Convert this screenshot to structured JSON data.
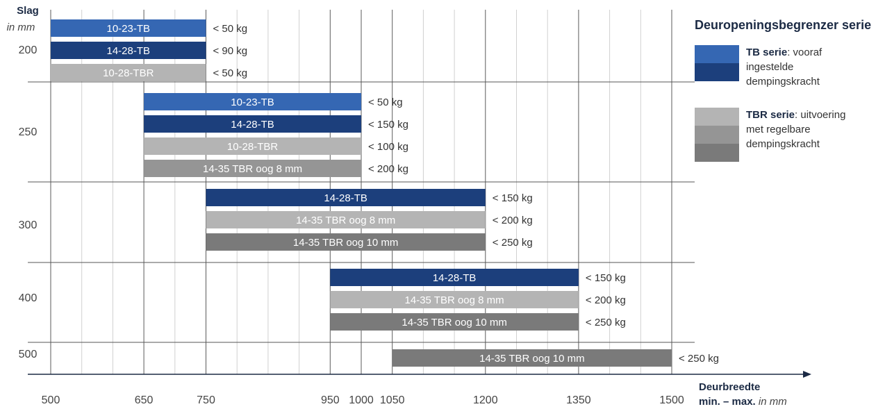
{
  "chart_data": {
    "type": "bar",
    "orientation": "horizontal-range",
    "title": "Deuropeningsbegrenzer serie",
    "ylabel": "Slag",
    "ylabel_unit": "in mm",
    "xlabel": "Deurbreedte",
    "xlabel_line2": "min. – max.",
    "xlabel_unit": "in mm",
    "xlim": [
      500,
      1500
    ],
    "x_ticks": [
      500,
      650,
      750,
      950,
      1000,
      1050,
      1200,
      1350,
      1500
    ],
    "x_minor_step": 50,
    "groups": [
      {
        "slag": "200",
        "bars": [
          {
            "label": "10-23-TB",
            "from": 500,
            "to": 750,
            "max_load": "< 50 kg",
            "series": "tb_light"
          },
          {
            "label": "14-28-TB",
            "from": 500,
            "to": 750,
            "max_load": "< 90 kg",
            "series": "tb_dark"
          },
          {
            "label": "10-28-TBR",
            "from": 500,
            "to": 750,
            "max_load": "< 50 kg",
            "series": "tbr_light"
          }
        ]
      },
      {
        "slag": "250",
        "bars": [
          {
            "label": "10-23-TB",
            "from": 650,
            "to": 1000,
            "max_load": "< 50 kg",
            "series": "tb_light"
          },
          {
            "label": "14-28-TB",
            "from": 650,
            "to": 1000,
            "max_load": "< 150 kg",
            "series": "tb_dark"
          },
          {
            "label": "10-28-TBR",
            "from": 650,
            "to": 1000,
            "max_load": "< 100 kg",
            "series": "tbr_light"
          },
          {
            "label": "14-35 TBR oog 8 mm",
            "from": 650,
            "to": 1000,
            "max_load": "< 200 kg",
            "series": "tbr_mid"
          }
        ]
      },
      {
        "slag": "300",
        "bars": [
          {
            "label": "14-28-TB",
            "from": 750,
            "to": 1200,
            "max_load": "< 150 kg",
            "series": "tb_dark"
          },
          {
            "label": "14-35 TBR oog 8 mm",
            "from": 750,
            "to": 1200,
            "max_load": "< 200 kg",
            "series": "tbr_light"
          },
          {
            "label": "14-35 TBR oog 10 mm",
            "from": 750,
            "to": 1200,
            "max_load": "< 250 kg",
            "series": "tbr_dark"
          }
        ]
      },
      {
        "slag": "400",
        "bars": [
          {
            "label": "14-28-TB",
            "from": 950,
            "to": 1350,
            "max_load": "< 150 kg",
            "series": "tb_dark"
          },
          {
            "label": "14-35 TBR oog 8 mm",
            "from": 950,
            "to": 1350,
            "max_load": "< 200 kg",
            "series": "tbr_light"
          },
          {
            "label": "14-35 TBR oog 10 mm",
            "from": 950,
            "to": 1350,
            "max_load": "< 250 kg",
            "series": "tbr_dark"
          }
        ]
      },
      {
        "slag": "500",
        "bars": [
          {
            "label": "14-35 TBR oog 10 mm",
            "from": 1050,
            "to": 1500,
            "max_load": "< 250 kg",
            "series": "tbr_dark"
          }
        ]
      }
    ],
    "colors": {
      "tb_light": "#3567b3",
      "tb_dark": "#1c3f7c",
      "tbr_light": "#b4b4b4",
      "tbr_mid": "#959595",
      "tbr_dark": "#7a7a7a",
      "axis": "#1b2a44",
      "grid_major": "#5a5a5a",
      "grid_minor": "#d0d0d0"
    },
    "legend": [
      {
        "name_bold": "TB serie",
        "name_rest": ": vooraf",
        "desc": [
          "ingestelde",
          "dempingskracht"
        ],
        "swatches": [
          "tb_light",
          "tb_dark"
        ]
      },
      {
        "name_bold": "TBR serie",
        "name_rest": ": uitvoering",
        "desc": [
          "met regelbare",
          "dempingskracht"
        ],
        "swatches": [
          "tbr_light",
          "tbr_mid",
          "tbr_dark"
        ]
      }
    ],
    "legend_position": "right",
    "grid": true
  }
}
